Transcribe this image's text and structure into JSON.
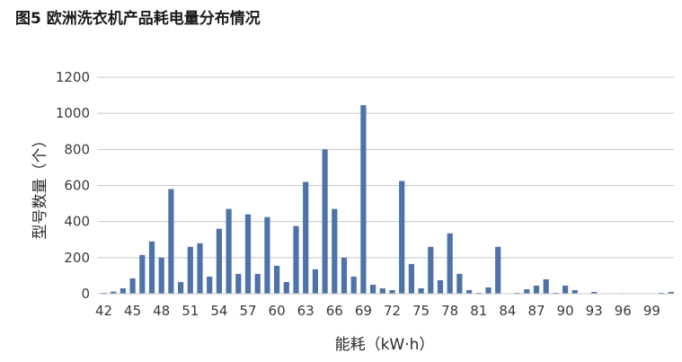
{
  "chart_data": {
    "type": "bar",
    "title": "图5 欧洲洗衣机产品耗电量分布情况",
    "xlabel": "能耗（kW·h）",
    "ylabel": "型号数量（个）",
    "ylim": [
      0,
      1200
    ],
    "yticks": [
      0,
      200,
      400,
      600,
      800,
      1000,
      1200
    ],
    "xticks": [
      42,
      45,
      48,
      51,
      54,
      57,
      60,
      63,
      66,
      69,
      72,
      75,
      78,
      81,
      84,
      87,
      90,
      93,
      96,
      99
    ],
    "grid": true,
    "bar_color": "#4e73a8",
    "x": [
      42,
      43,
      44,
      45,
      46,
      47,
      48,
      49,
      50,
      51,
      52,
      53,
      54,
      55,
      56,
      57,
      58,
      59,
      60,
      61,
      62,
      63,
      64,
      65,
      66,
      67,
      68,
      69,
      70,
      71,
      72,
      73,
      74,
      75,
      76,
      77,
      78,
      79,
      80,
      81,
      82,
      83,
      84,
      85,
      86,
      87,
      88,
      89,
      90,
      91,
      92,
      93,
      94,
      95,
      96,
      97,
      98,
      99,
      100,
      101
    ],
    "values": [
      5,
      12,
      30,
      85,
      215,
      290,
      200,
      580,
      65,
      260,
      280,
      95,
      360,
      470,
      110,
      440,
      110,
      425,
      155,
      65,
      375,
      620,
      135,
      800,
      470,
      200,
      95,
      1045,
      50,
      30,
      20,
      625,
      165,
      30,
      260,
      75,
      335,
      110,
      20,
      5,
      35,
      260,
      0,
      5,
      25,
      45,
      80,
      5,
      45,
      20,
      0,
      10,
      0,
      0,
      3,
      0,
      0,
      0,
      5,
      10
    ]
  }
}
